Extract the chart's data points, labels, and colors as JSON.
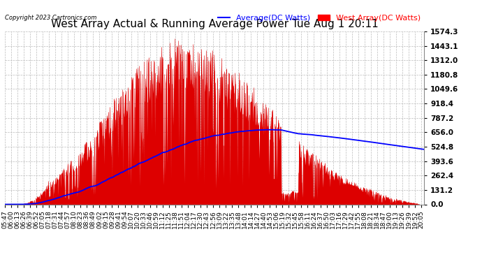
{
  "title": "West Array Actual & Running Average Power Tue Aug 1 20:11",
  "copyright": "Copyright 2023 Cartronics.com",
  "legend_average": "Average(DC Watts)",
  "legend_west": "West Array(DC Watts)",
  "legend_avg_color": "blue",
  "legend_west_color": "red",
  "title_fontsize": 11,
  "background_color": "#ffffff",
  "grid_color": "#bbbbbb",
  "yticks": [
    0.0,
    131.2,
    262.4,
    393.6,
    524.8,
    656.0,
    787.2,
    918.4,
    1049.6,
    1180.8,
    1312.0,
    1443.1,
    1574.3
  ],
  "ymax": 1574.3,
  "ymin": 0.0,
  "fill_color": "#dd0000",
  "line_color": "blue",
  "x_label_fontsize": 6.5,
  "y_label_fontsize": 7.5
}
